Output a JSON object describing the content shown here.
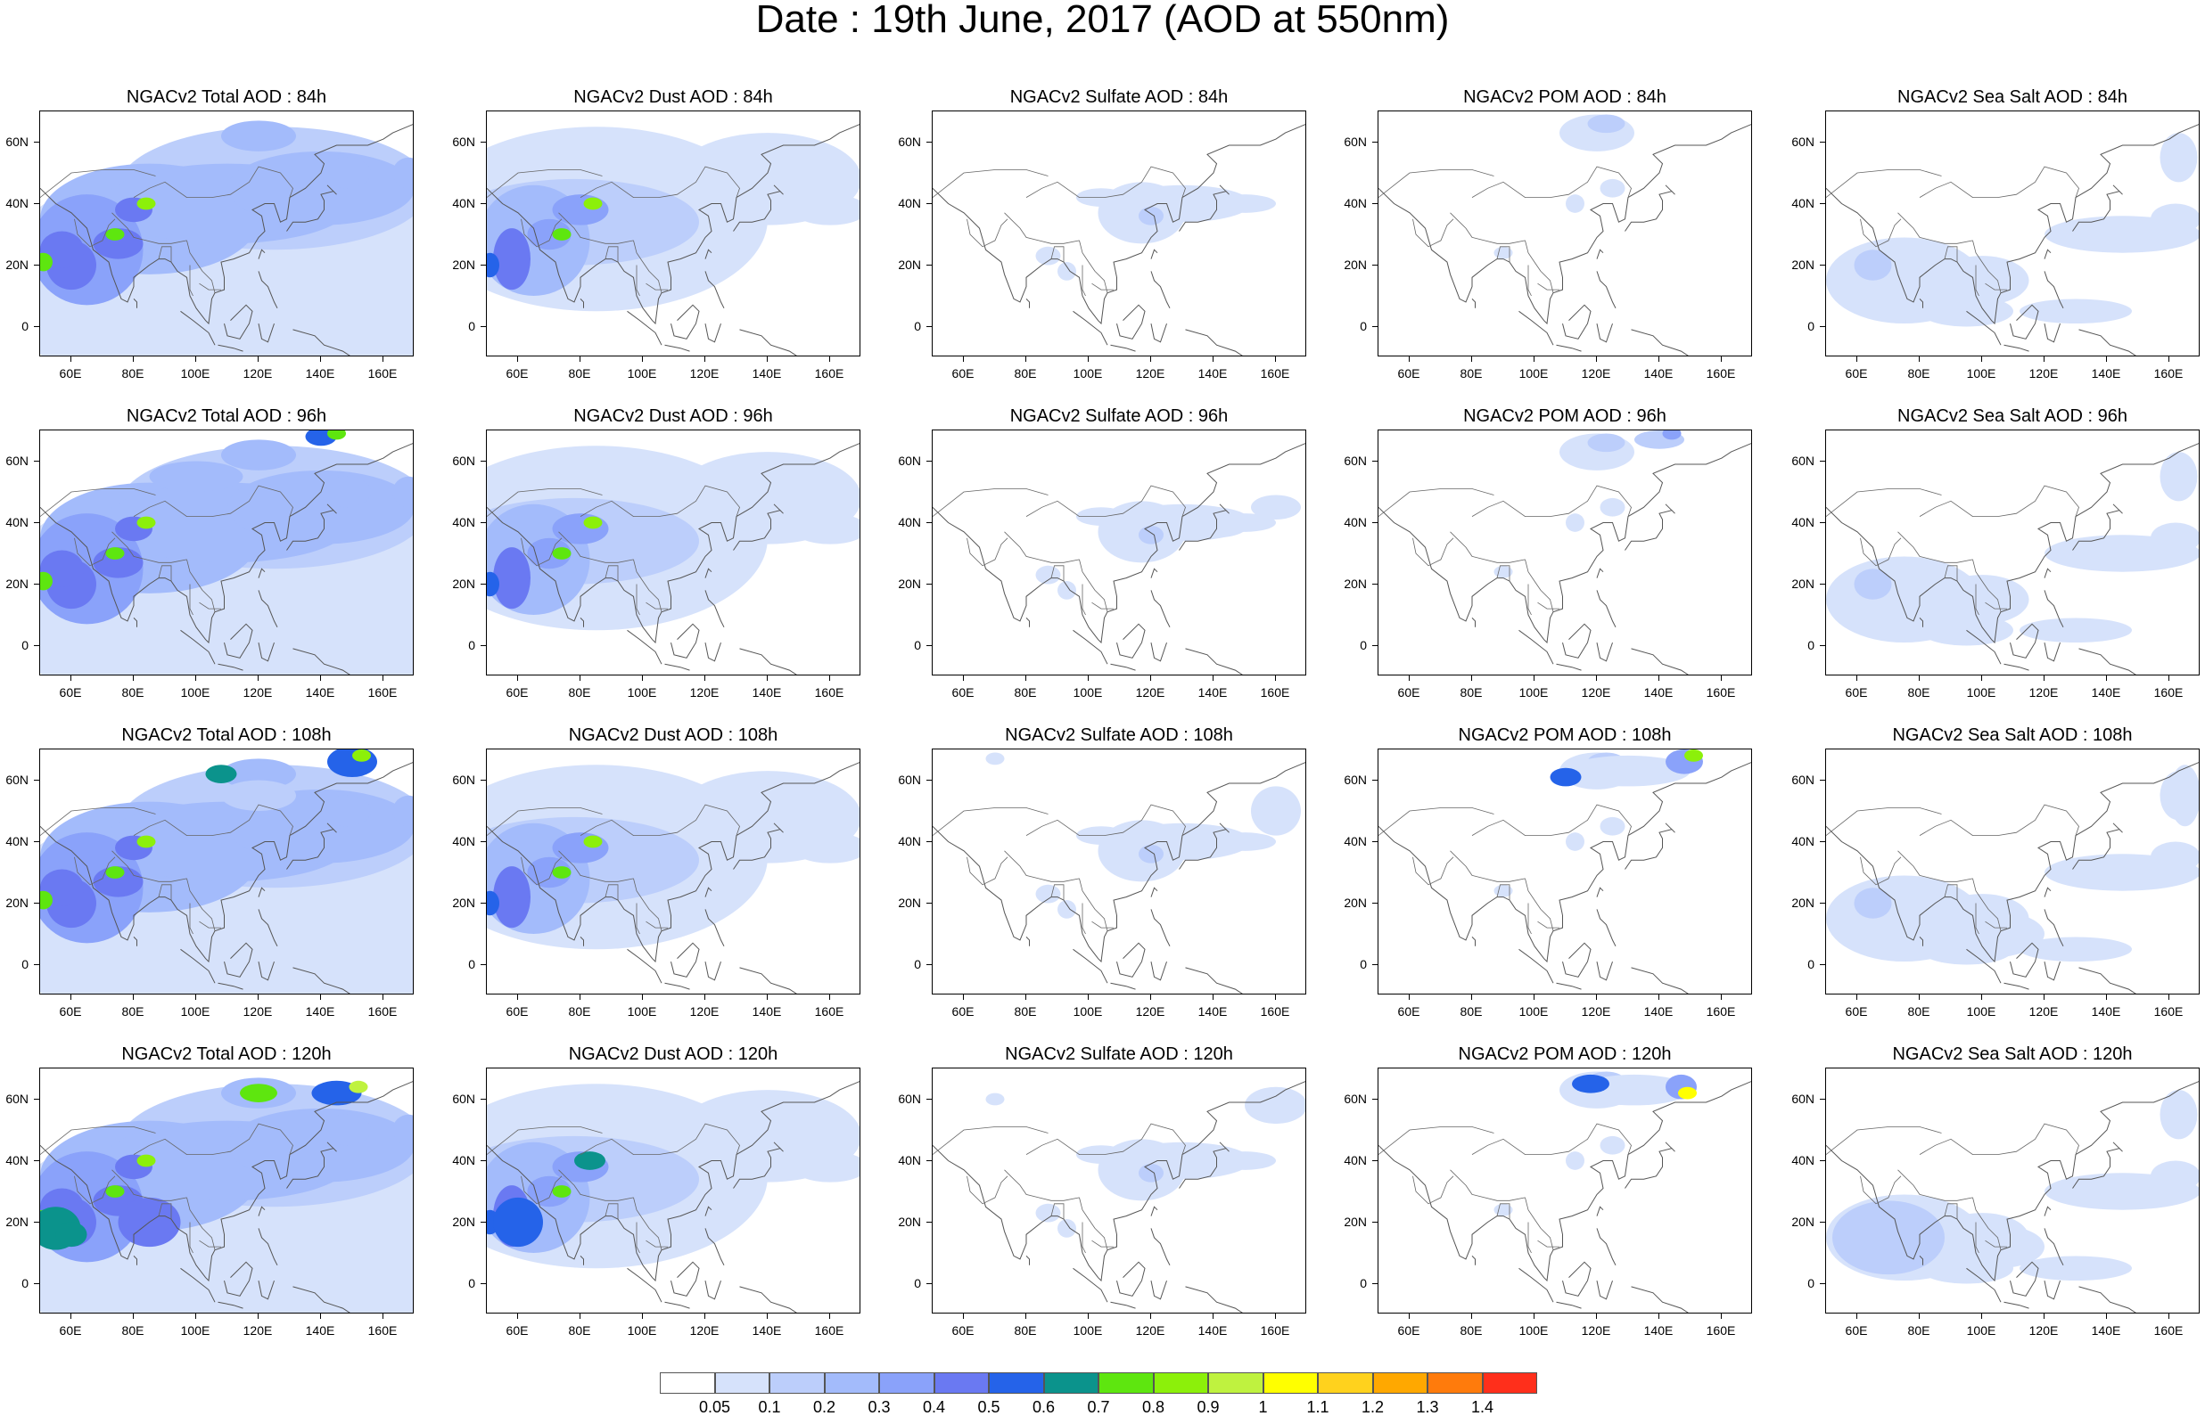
{
  "title": "Date : 19th June, 2017 (AOD at 550nm)",
  "x_tick_labels": [
    "60E",
    "80E",
    "100E",
    "120E",
    "140E",
    "160E"
  ],
  "y_tick_labels": [
    "60N",
    "40N",
    "20N",
    "0"
  ],
  "panels": [
    {
      "title": "NGACv2 Total AOD : 84h",
      "species": "total",
      "lead": "84h"
    },
    {
      "title": "NGACv2 Dust AOD : 84h",
      "species": "dust",
      "lead": "84h"
    },
    {
      "title": "NGACv2 Sulfate AOD : 84h",
      "species": "sulfate",
      "lead": "84h"
    },
    {
      "title": "NGACv2 POM AOD : 84h",
      "species": "pom",
      "lead": "84h"
    },
    {
      "title": "NGACv2 Sea Salt AOD : 84h",
      "species": "seasalt",
      "lead": "84h"
    },
    {
      "title": "NGACv2 Total AOD : 96h",
      "species": "total",
      "lead": "96h"
    },
    {
      "title": "NGACv2 Dust AOD : 96h",
      "species": "dust",
      "lead": "96h"
    },
    {
      "title": "NGACv2 Sulfate AOD : 96h",
      "species": "sulfate",
      "lead": "96h"
    },
    {
      "title": "NGACv2 POM AOD : 96h",
      "species": "pom",
      "lead": "96h"
    },
    {
      "title": "NGACv2 Sea Salt AOD : 96h",
      "species": "seasalt",
      "lead": "96h"
    },
    {
      "title": "NGACv2 Total AOD : 108h",
      "species": "total",
      "lead": "108h"
    },
    {
      "title": "NGACv2 Dust AOD : 108h",
      "species": "dust",
      "lead": "108h"
    },
    {
      "title": "NGACv2 Sulfate AOD : 108h",
      "species": "sulfate",
      "lead": "108h"
    },
    {
      "title": "NGACv2 POM AOD : 108h",
      "species": "pom",
      "lead": "108h"
    },
    {
      "title": "NGACv2 Sea Salt AOD : 108h",
      "species": "seasalt",
      "lead": "108h"
    },
    {
      "title": "NGACv2 Total AOD : 120h",
      "species": "total",
      "lead": "120h"
    },
    {
      "title": "NGACv2 Dust AOD : 120h",
      "species": "dust",
      "lead": "120h"
    },
    {
      "title": "NGACv2 Sulfate AOD : 120h",
      "species": "sulfate",
      "lead": "120h"
    },
    {
      "title": "NGACv2 POM AOD : 120h",
      "species": "pom",
      "lead": "120h"
    },
    {
      "title": "NGACv2 Sea Salt  AOD : 120h",
      "species": "seasalt",
      "lead": "120h"
    }
  ],
  "colorbar": {
    "colors": [
      "#ffffff",
      "#d6e2fb",
      "#bccefb",
      "#a3bbfb",
      "#8aa2fa",
      "#6a79f2",
      "#2563e9",
      "#0b938c",
      "#5ee60f",
      "#8cf00a",
      "#bff23f",
      "#ffff00",
      "#ffd21d",
      "#ffa800",
      "#ff7b0c",
      "#ff2f1b"
    ],
    "labels": [
      "0.05",
      "0.1",
      "0.2",
      "0.3",
      "0.4",
      "0.5",
      "0.6",
      "0.7",
      "0.8",
      "0.9",
      "1",
      "1.1",
      "1.2",
      "1.3",
      "1.4"
    ]
  },
  "legend_placement": "bottom-center"
}
